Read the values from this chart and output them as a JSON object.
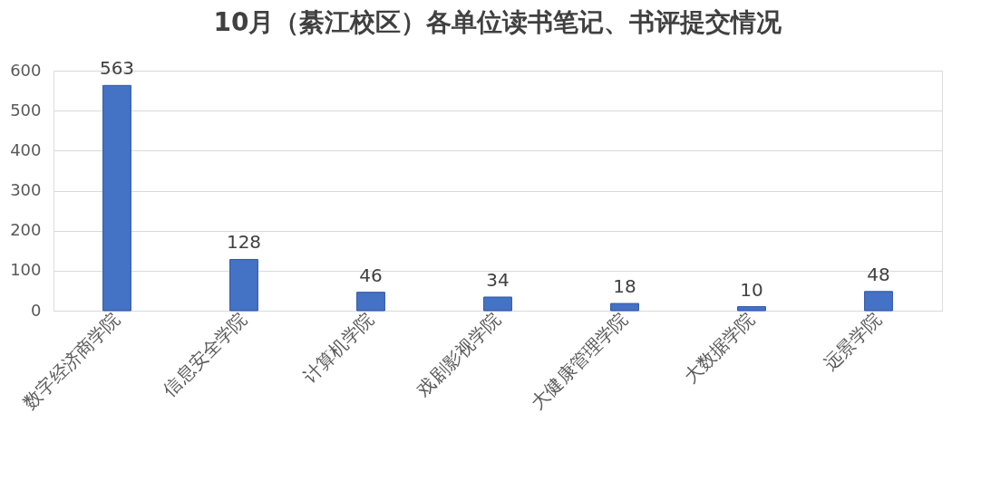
{
  "chart_data": {
    "type": "bar",
    "title": "10月（綦江校区）各单位读书笔记、书评提交情况",
    "categories": [
      "数字经济商学院",
      "信息安全学院",
      "计算机学院",
      "戏剧影视学院",
      "大健康管理学院",
      "大数据学院",
      "远景学院"
    ],
    "values": [
      563,
      128,
      46,
      34,
      18,
      10,
      48
    ],
    "color": "#4472c4",
    "ylim": [
      0,
      600
    ],
    "yticks": [
      0,
      100,
      200,
      300,
      400,
      500,
      600
    ],
    "grid": "y",
    "data_labels": true
  }
}
